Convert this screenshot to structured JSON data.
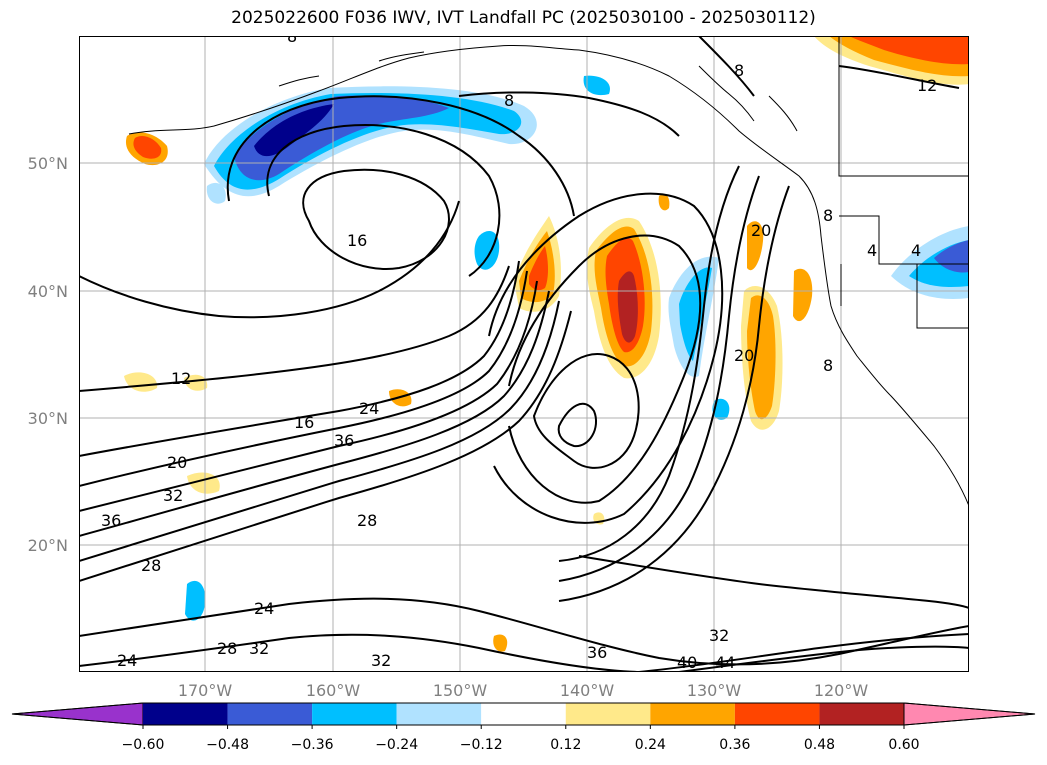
{
  "title": "2025022600 F036 IWV, IVT Landfall PC (2025030100 - 2025030112)",
  "map": {
    "lon_ticks": [
      "170°W",
      "160°W",
      "150°W",
      "140°W",
      "130°W",
      "120°W"
    ],
    "lat_ticks": [
      "50°N",
      "40°N",
      "30°N",
      "20°N"
    ],
    "grid": true,
    "contour_labels": [
      "8",
      "8",
      "8",
      "12",
      "16",
      "20",
      "20",
      "16",
      "24",
      "36",
      "20",
      "32",
      "36",
      "28",
      "28",
      "24",
      "24",
      "28",
      "32",
      "32",
      "36",
      "32",
      "40",
      "44",
      "12",
      "8",
      "8",
      "4",
      "4"
    ]
  },
  "colorbar": {
    "ticks": [
      "−0.60",
      "−0.48",
      "−0.36",
      "−0.24",
      "−0.12",
      "0.12",
      "0.24",
      "0.36",
      "0.48",
      "0.60"
    ],
    "colors": [
      "#9932cc",
      "#00008b",
      "#3a5bd6",
      "#00bfff",
      "#b0e2ff",
      "#ffffff",
      "#ffe98a",
      "#ffa500",
      "#ff4500",
      "#b22222",
      "#ff88b0"
    ]
  },
  "colors": {
    "neg_dark": "#00008b",
    "neg_mid": "#3a5bd6",
    "neg_cyan": "#00bfff",
    "neg_light": "#b0e2ff",
    "pos_yellow": "#ffe98a",
    "pos_orange": "#ffa500",
    "pos_red": "#ff4500",
    "pos_dark": "#b22222"
  }
}
